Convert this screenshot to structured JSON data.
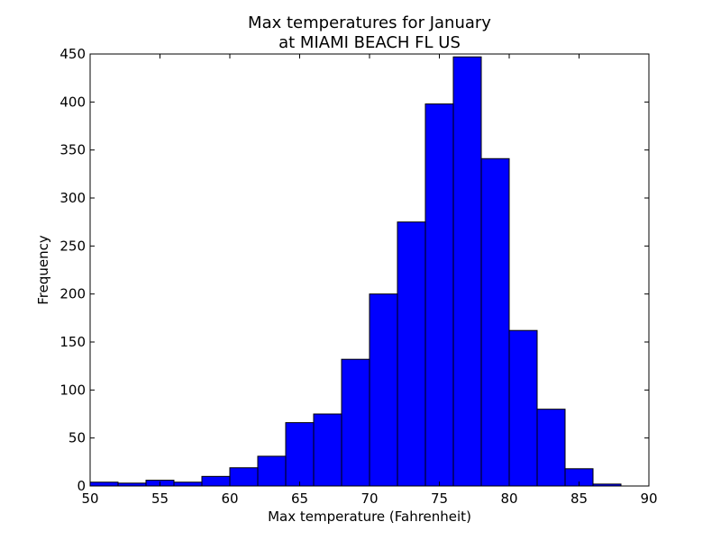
{
  "chart_data": {
    "type": "bar",
    "title_lines": [
      "Max temperatures for January",
      "at MIAMI BEACH FL US"
    ],
    "xlabel": "Max temperature (Fahrenheit)",
    "ylabel": "Frequency",
    "xlim": [
      50,
      90
    ],
    "ylim": [
      0,
      450
    ],
    "xticks": [
      50,
      55,
      60,
      65,
      70,
      75,
      80,
      85,
      90
    ],
    "yticks": [
      0,
      50,
      100,
      150,
      200,
      250,
      300,
      350,
      400,
      450
    ],
    "bin_width": 2,
    "bins": [
      {
        "start": 50,
        "end": 52,
        "value": 4
      },
      {
        "start": 52,
        "end": 54,
        "value": 3
      },
      {
        "start": 54,
        "end": 56,
        "value": 6
      },
      {
        "start": 56,
        "end": 58,
        "value": 4
      },
      {
        "start": 58,
        "end": 60,
        "value": 10
      },
      {
        "start": 60,
        "end": 62,
        "value": 19
      },
      {
        "start": 62,
        "end": 64,
        "value": 31
      },
      {
        "start": 64,
        "end": 66,
        "value": 66
      },
      {
        "start": 66,
        "end": 68,
        "value": 75
      },
      {
        "start": 68,
        "end": 70,
        "value": 132
      },
      {
        "start": 70,
        "end": 72,
        "value": 200
      },
      {
        "start": 72,
        "end": 74,
        "value": 275
      },
      {
        "start": 74,
        "end": 76,
        "value": 398
      },
      {
        "start": 76,
        "end": 78,
        "value": 447
      },
      {
        "start": 78,
        "end": 80,
        "value": 341
      },
      {
        "start": 80,
        "end": 82,
        "value": 162
      },
      {
        "start": 82,
        "end": 84,
        "value": 80
      },
      {
        "start": 84,
        "end": 86,
        "value": 18
      },
      {
        "start": 86,
        "end": 88,
        "value": 2
      }
    ],
    "bar_color": "#0000ff",
    "edge_color": "#000000",
    "grid": false,
    "legend": "none"
  }
}
